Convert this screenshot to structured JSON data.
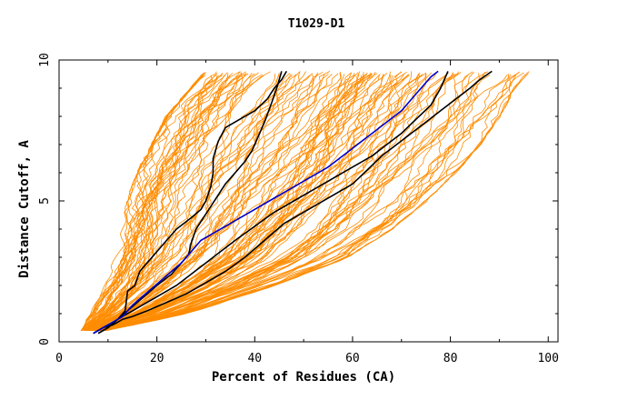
{
  "chart_data": {
    "type": "line",
    "title": "T1029-D1",
    "xlabel": "Percent of Residues (CA)",
    "ylabel": "Distance Cutoff, A",
    "xlim": [
      0,
      102
    ],
    "ylim": [
      0,
      10
    ],
    "x_ticks": [
      "0",
      "20",
      "40",
      "60",
      "80",
      "100"
    ],
    "y_ticks": [
      "0",
      "5",
      "10"
    ],
    "grid": false,
    "legend": "none",
    "colors": {
      "bundle": "#ff8c00",
      "highlight_black": "#000000",
      "highlight_blue": "#0000cc"
    },
    "bundle_envelope": {
      "y": [
        0.4,
        1,
        2,
        3,
        4,
        5,
        6,
        7,
        8,
        9,
        9.6
      ],
      "x_min": [
        4.5,
        6.5,
        9.5,
        11.5,
        13,
        14,
        16,
        19,
        22,
        27,
        30
      ],
      "x_max": [
        9.5,
        26,
        44,
        59,
        68,
        75,
        81,
        86,
        90,
        93,
        96
      ]
    },
    "bundle_count": 130,
    "series": [
      {
        "color": "black",
        "x": [
          8,
          10,
          12,
          13.5,
          14,
          15.5,
          16.5,
          18,
          20,
          22,
          24,
          27,
          29,
          30,
          31,
          31.5,
          31.5,
          32.5,
          34,
          37,
          40,
          42.5,
          44,
          45.5,
          46.5
        ],
        "y": [
          0.3,
          0.5,
          0.8,
          1.1,
          1.8,
          2.0,
          2.5,
          2.8,
          3.2,
          3.6,
          4.0,
          4.4,
          4.7,
          5.0,
          5.5,
          6.0,
          6.5,
          7.1,
          7.6,
          7.9,
          8.2,
          8.6,
          9.0,
          9.3,
          9.6
        ]
      },
      {
        "color": "black",
        "x": [
          8,
          10,
          12,
          14,
          16,
          18,
          20,
          23,
          25,
          26.5,
          27,
          28,
          29.5,
          31,
          32.5,
          34,
          36,
          38,
          39.5,
          40.5,
          42,
          43.5,
          44.5,
          45.5
        ],
        "y": [
          0.3,
          0.5,
          0.8,
          1.1,
          1.4,
          1.7,
          2.0,
          2.4,
          2.8,
          3.1,
          3.5,
          4.0,
          4.4,
          4.8,
          5.2,
          5.6,
          6.0,
          6.4,
          6.8,
          7.2,
          7.8,
          8.5,
          9.0,
          9.6
        ]
      },
      {
        "color": "black",
        "x": [
          7,
          9,
          11,
          13,
          15,
          17,
          19,
          21,
          24,
          27,
          30,
          33,
          36,
          40,
          44,
          48,
          52,
          56,
          60,
          64,
          67,
          70,
          73,
          76,
          78,
          79.5
        ],
        "y": [
          0.3,
          0.5,
          0.7,
          0.9,
          1.1,
          1.3,
          1.5,
          1.7,
          2.0,
          2.4,
          2.8,
          3.2,
          3.6,
          4.1,
          4.6,
          5.0,
          5.4,
          5.8,
          6.2,
          6.6,
          7.0,
          7.4,
          7.9,
          8.4,
          9.0,
          9.6
        ]
      },
      {
        "color": "black",
        "x": [
          7,
          9,
          11,
          13,
          15,
          18,
          22,
          26,
          30,
          34,
          38,
          42,
          46,
          50,
          55,
          60,
          63,
          66,
          69,
          72,
          75,
          78,
          81,
          84,
          86,
          88.5
        ],
        "y": [
          0.3,
          0.5,
          0.6,
          0.8,
          0.9,
          1.1,
          1.4,
          1.7,
          2.1,
          2.5,
          3.0,
          3.6,
          4.2,
          4.6,
          5.1,
          5.6,
          6.1,
          6.6,
          7.0,
          7.4,
          7.8,
          8.2,
          8.6,
          9.0,
          9.3,
          9.6
        ]
      },
      {
        "color": "blue",
        "x": [
          7,
          10,
          13,
          15,
          17,
          19,
          21,
          23,
          25,
          27,
          29,
          32,
          35,
          39,
          43,
          47,
          51,
          55,
          58,
          61,
          64,
          67,
          70,
          72,
          74,
          76,
          77.5
        ],
        "y": [
          0.3,
          0.6,
          0.9,
          1.3,
          1.6,
          1.9,
          2.2,
          2.5,
          2.8,
          3.2,
          3.6,
          3.9,
          4.2,
          4.6,
          5.0,
          5.4,
          5.8,
          6.2,
          6.6,
          7.0,
          7.4,
          7.8,
          8.2,
          8.6,
          9.0,
          9.4,
          9.6
        ]
      }
    ]
  }
}
